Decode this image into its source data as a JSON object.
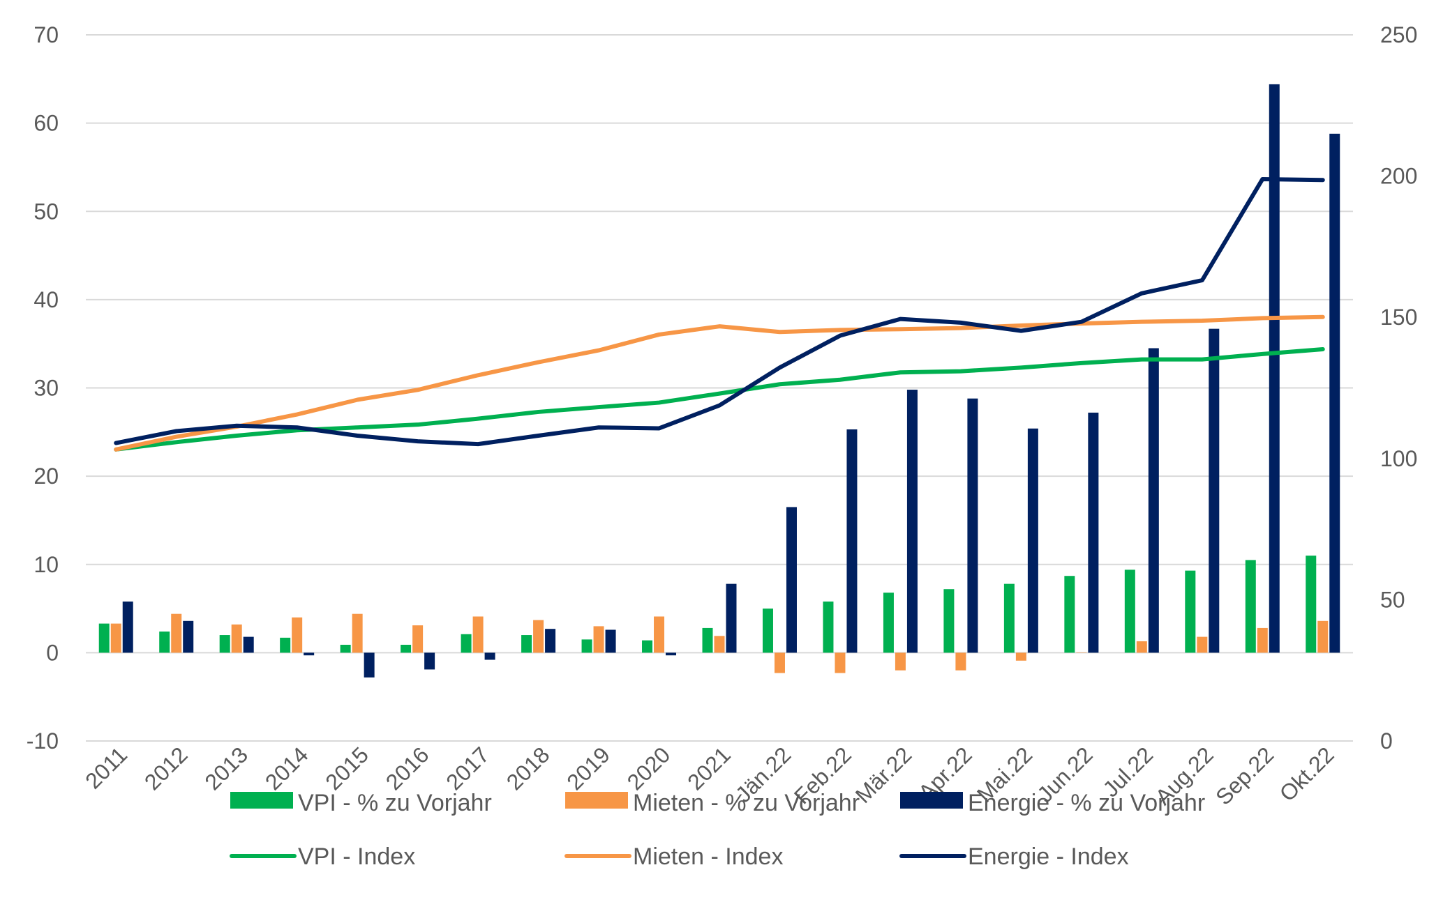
{
  "chart_data": {
    "type": "bar+line",
    "title": "",
    "categories": [
      "2011",
      "2012",
      "2013",
      "2014",
      "2015",
      "2016",
      "2017",
      "2018",
      "2019",
      "2020",
      "2021",
      "Jän.22",
      "Feb.22",
      "Mär.22",
      "Apr.22",
      "Mai.22",
      "Jun.22",
      "Jul.22",
      "Aug.22",
      "Sep.22",
      "Okt.22"
    ],
    "y_left": {
      "range": [
        -10,
        70
      ],
      "ticks": [
        "-10",
        "0",
        "10",
        "20",
        "30",
        "40",
        "50",
        "60",
        "70"
      ]
    },
    "y_right": {
      "range": [
        0,
        250
      ],
      "ticks": [
        "0",
        "50",
        "100",
        "150",
        "200",
        "250"
      ]
    },
    "grid": true,
    "legend_position": "bottom",
    "bar_series": [
      {
        "name": "VPI - % zu Vorjahr",
        "color": "#00B050",
        "axis": "left",
        "values": [
          3.3,
          2.4,
          2.0,
          1.7,
          0.9,
          0.9,
          2.1,
          2.0,
          1.5,
          1.4,
          2.8,
          5.0,
          5.8,
          6.8,
          7.2,
          7.8,
          8.7,
          9.4,
          9.3,
          10.5,
          11.0
        ]
      },
      {
        "name": "Mieten - % zu Vorjahr",
        "color": "#F79646",
        "axis": "left",
        "values": [
          3.3,
          4.4,
          3.2,
          4.0,
          4.4,
          3.1,
          4.1,
          3.7,
          3.0,
          4.1,
          1.9,
          -2.3,
          -2.3,
          -2.0,
          -2.0,
          -0.9,
          0.0,
          1.3,
          1.8,
          2.8,
          3.6
        ]
      },
      {
        "name": "Energie - % zu Vorjahr",
        "color": "#002060",
        "axis": "left",
        "values": [
          5.8,
          3.6,
          1.8,
          -0.3,
          -2.8,
          -1.9,
          -0.8,
          2.7,
          2.6,
          -0.3,
          7.8,
          16.5,
          25.3,
          29.8,
          28.8,
          25.4,
          27.2,
          34.5,
          36.7,
          64.4,
          58.8
        ]
      }
    ],
    "line_series": [
      {
        "name": "VPI - Index",
        "color": "#00B050",
        "axis": "right",
        "values": [
          103.2,
          105.8,
          108.1,
          110.0,
          111.0,
          112.0,
          114.1,
          116.5,
          118.2,
          119.8,
          123.0,
          126.3,
          127.9,
          130.5,
          130.9,
          132.2,
          133.8,
          135.1,
          135.1,
          137.0,
          138.7
        ]
      },
      {
        "name": "Mieten - Index",
        "color": "#F79646",
        "axis": "right",
        "values": [
          103.2,
          107.7,
          111.3,
          115.6,
          120.8,
          124.3,
          129.5,
          134.1,
          138.3,
          143.9,
          146.8,
          144.8,
          145.5,
          145.8,
          146.2,
          147.1,
          147.8,
          148.4,
          148.8,
          149.7,
          150.1
        ]
      },
      {
        "name": "Energie - Index",
        "color": "#002060",
        "axis": "right",
        "values": [
          105.5,
          109.7,
          111.6,
          111.0,
          108.1,
          106.1,
          105.1,
          108.1,
          111.0,
          110.7,
          118.8,
          132.2,
          143.5,
          149.4,
          148.1,
          145.2,
          148.4,
          158.5,
          163.1,
          198.9,
          198.6
        ]
      }
    ]
  }
}
